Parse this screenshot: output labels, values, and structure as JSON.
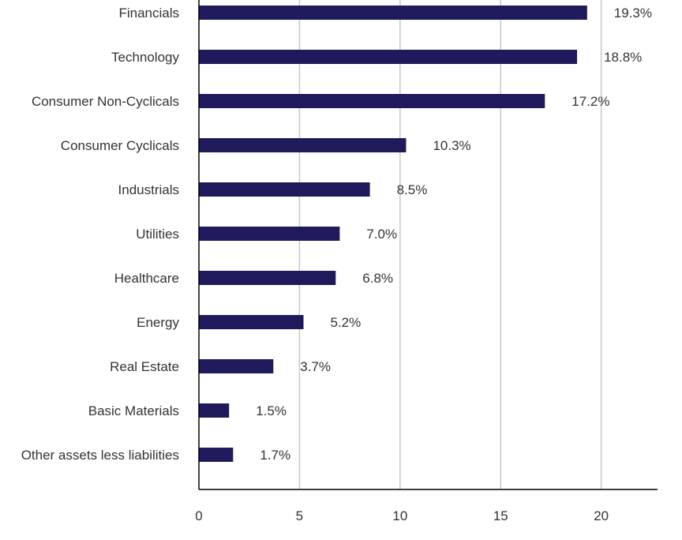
{
  "chart_data": {
    "type": "bar",
    "orientation": "horizontal",
    "categories": [
      "Financials",
      "Technology",
      "Consumer Non-Cyclicals",
      "Consumer Cyclicals",
      "Industrials",
      "Utilities",
      "Healthcare",
      "Energy",
      "Real Estate",
      "Basic Materials",
      "Other assets less liabilities"
    ],
    "values": [
      19.3,
      18.8,
      17.2,
      10.3,
      8.5,
      7.0,
      6.8,
      5.2,
      3.7,
      1.5,
      1.7
    ],
    "data_labels": [
      "19.3%",
      "18.8%",
      "17.2%",
      "10.3%",
      "8.5%",
      "7.0%",
      "6.8%",
      "5.2%",
      "3.7%",
      "1.5%",
      "1.7%"
    ],
    "xlim": [
      0,
      22.8
    ],
    "x_ticks": [
      0,
      5,
      10,
      15,
      20
    ],
    "x_tick_labels": [
      "0",
      "5",
      "10",
      "15",
      "20"
    ],
    "grid": "vertical",
    "legend": "none",
    "bar_color": "#1f1a5c",
    "grid_color": "#c8c8c8",
    "text_color": "#333333"
  }
}
